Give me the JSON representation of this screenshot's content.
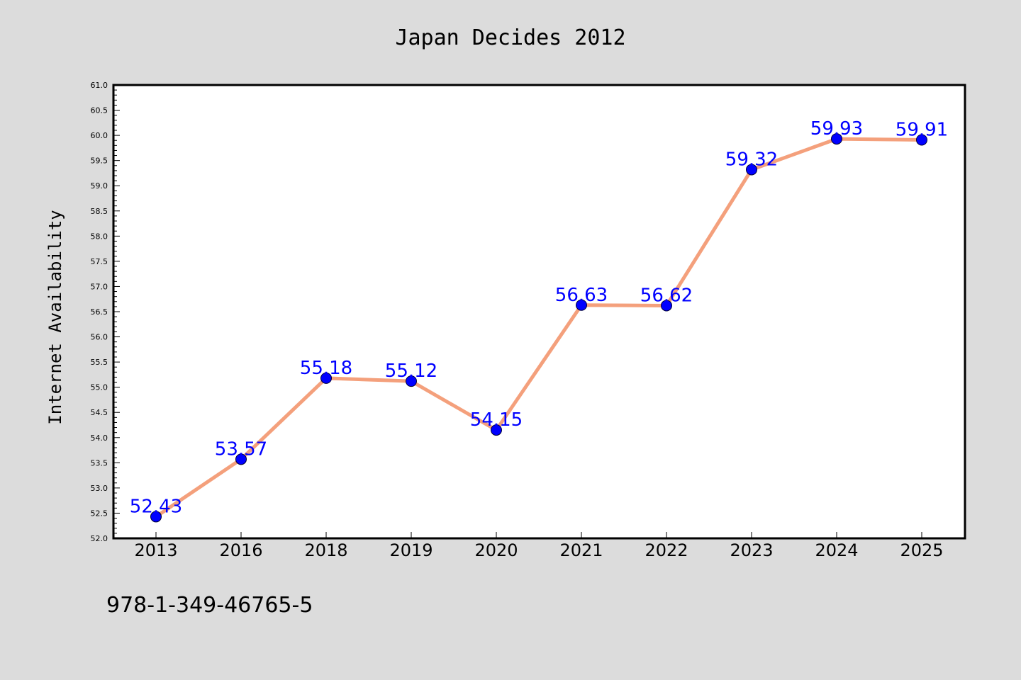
{
  "chart_data": {
    "type": "line",
    "title": "Japan Decides 2012",
    "xlabel": "",
    "ylabel": "Internet Availability",
    "categories": [
      "2013",
      "2016",
      "2018",
      "2019",
      "2020",
      "2021",
      "2022",
      "2023",
      "2024",
      "2025"
    ],
    "series": [
      {
        "values": [
          52.43,
          53.57,
          55.18,
          55.12,
          54.15,
          56.63,
          56.62,
          59.32,
          59.93,
          59.91
        ],
        "line_color": "#f4a07c",
        "marker_color": "#0000ff"
      }
    ],
    "data_labels": [
      "52.43",
      "53.57",
      "55.18",
      "55.12",
      "54.15",
      "56.63",
      "56.62",
      "59.32",
      "59.93",
      "59.91"
    ],
    "ylim": [
      52.0,
      61.0
    ],
    "yticks": [
      "52.0",
      "52.5",
      "53.0",
      "53.5",
      "54.0",
      "54.5",
      "55.0",
      "55.5",
      "56.0",
      "56.5",
      "57.0",
      "57.5",
      "58.0",
      "58.5",
      "59.0",
      "59.5",
      "60.0",
      "60.5",
      "61.0"
    ],
    "grid": false,
    "background": "#dcdcdc",
    "plot_background": "#ffffff",
    "label_color": "#0000ff"
  },
  "footer_text": "978-1-349-46765-5"
}
